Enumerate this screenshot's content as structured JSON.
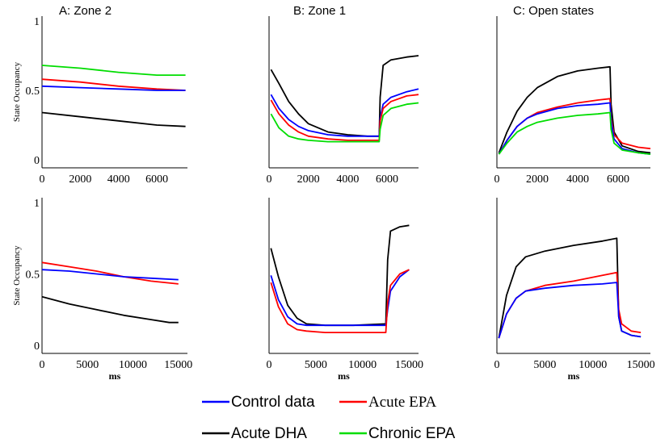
{
  "chart_data": {
    "type": "line",
    "ylabel": "State Occupancy",
    "xlabel": "ms",
    "legend": {
      "placement": "bottom",
      "entries": [
        {
          "name": "Control data",
          "color": "#0000ff"
        },
        {
          "name": "Acute EPA",
          "color": "#ff0000"
        },
        {
          "name": "Acute DHA",
          "color": "#000000"
        },
        {
          "name": "Chronic EPA",
          "color": "#00dd00"
        }
      ]
    },
    "panels": [
      {
        "id": "A-top",
        "title": "A: Zone 2",
        "xlim": [
          0,
          7600
        ],
        "ylim": [
          0,
          1
        ],
        "xticks": [
          "0",
          "2000",
          "4000",
          "6000"
        ],
        "yticks": [
          "0",
          "0.5",
          "1"
        ],
        "show_ylabel": true,
        "show_xlabel": false,
        "series": [
          {
            "name": "Chronic EPA",
            "x": [
              0,
              2000,
              4000,
              6000,
              7500
            ],
            "y": [
              0.68,
              0.66,
              0.63,
              0.61,
              0.61
            ]
          },
          {
            "name": "Acute EPA",
            "x": [
              0,
              2000,
              4000,
              6000,
              7500
            ],
            "y": [
              0.58,
              0.56,
              0.53,
              0.51,
              0.5
            ]
          },
          {
            "name": "Control data",
            "x": [
              0,
              2000,
              4000,
              6000,
              7500
            ],
            "y": [
              0.53,
              0.52,
              0.51,
              0.5,
              0.5
            ]
          },
          {
            "name": "Acute DHA",
            "x": [
              0,
              2000,
              4000,
              6000,
              7500
            ],
            "y": [
              0.34,
              0.31,
              0.28,
              0.25,
              0.24
            ]
          }
        ]
      },
      {
        "id": "B-top",
        "title": "B: Zone 1",
        "xlim": [
          0,
          7600
        ],
        "ylim": [
          0,
          1
        ],
        "xticks": [
          "0",
          "2000",
          "4000",
          "6000"
        ],
        "yticks": [],
        "show_ylabel": false,
        "show_xlabel": false,
        "series": [
          {
            "name": "Acute DHA",
            "x": [
              100,
              500,
              1000,
              1500,
              2000,
              3000,
              4000,
              5000,
              5600,
              5650,
              5800,
              6200,
              7000,
              7600
            ],
            "y": [
              0.65,
              0.55,
              0.42,
              0.33,
              0.26,
              0.2,
              0.18,
              0.17,
              0.17,
              0.45,
              0.68,
              0.72,
              0.74,
              0.75
            ]
          },
          {
            "name": "Control data",
            "x": [
              100,
              500,
              1000,
              1500,
              2000,
              3000,
              4000,
              5000,
              5600,
              5650,
              5800,
              6200,
              7000,
              7600
            ],
            "y": [
              0.47,
              0.37,
              0.29,
              0.24,
              0.21,
              0.18,
              0.17,
              0.17,
              0.17,
              0.3,
              0.4,
              0.45,
              0.49,
              0.51
            ]
          },
          {
            "name": "Acute EPA",
            "x": [
              100,
              500,
              1000,
              1500,
              2000,
              3000,
              4000,
              5000,
              5600,
              5650,
              5800,
              6200,
              7000,
              7600
            ],
            "y": [
              0.43,
              0.33,
              0.25,
              0.2,
              0.17,
              0.15,
              0.14,
              0.14,
              0.14,
              0.28,
              0.37,
              0.42,
              0.46,
              0.47
            ]
          },
          {
            "name": "Chronic EPA",
            "x": [
              100,
              500,
              1000,
              1500,
              2000,
              3000,
              4000,
              5000,
              5600,
              5650,
              5800,
              6200,
              7000,
              7600
            ],
            "y": [
              0.33,
              0.23,
              0.17,
              0.15,
              0.14,
              0.13,
              0.13,
              0.13,
              0.13,
              0.22,
              0.32,
              0.37,
              0.4,
              0.41
            ]
          }
        ]
      },
      {
        "id": "C-top",
        "title": "C: Open states",
        "xlim": [
          0,
          7600
        ],
        "ylim": [
          0,
          1
        ],
        "xticks": [
          "0",
          "2000",
          "4000",
          "6000"
        ],
        "yticks": [],
        "show_ylabel": false,
        "show_xlabel": false,
        "series": [
          {
            "name": "Acute DHA",
            "x": [
              100,
              500,
              1000,
              1500,
              2000,
              3000,
              4000,
              5000,
              5600,
              5650,
              5800,
              6200,
              7000,
              7600
            ],
            "y": [
              0.05,
              0.2,
              0.35,
              0.45,
              0.52,
              0.6,
              0.64,
              0.66,
              0.67,
              0.4,
              0.2,
              0.1,
              0.06,
              0.05
            ]
          },
          {
            "name": "Acute EPA",
            "x": [
              100,
              500,
              1000,
              1500,
              2000,
              3000,
              4000,
              5000,
              5600,
              5650,
              5800,
              6200,
              7000,
              7600
            ],
            "y": [
              0.04,
              0.14,
              0.24,
              0.3,
              0.34,
              0.38,
              0.41,
              0.43,
              0.44,
              0.3,
              0.18,
              0.12,
              0.09,
              0.08
            ]
          },
          {
            "name": "Control data",
            "x": [
              100,
              500,
              1000,
              1500,
              2000,
              3000,
              4000,
              5000,
              5600,
              5650,
              5800,
              6200,
              7000,
              7600
            ],
            "y": [
              0.04,
              0.14,
              0.24,
              0.3,
              0.33,
              0.37,
              0.39,
              0.4,
              0.41,
              0.28,
              0.15,
              0.08,
              0.05,
              0.04
            ]
          },
          {
            "name": "Chronic EPA",
            "x": [
              100,
              500,
              1000,
              1500,
              2000,
              3000,
              4000,
              5000,
              5600,
              5650,
              5800,
              6200,
              7000,
              7600
            ],
            "y": [
              0.04,
              0.12,
              0.2,
              0.24,
              0.27,
              0.3,
              0.32,
              0.33,
              0.34,
              0.22,
              0.12,
              0.07,
              0.05,
              0.04
            ]
          }
        ]
      },
      {
        "id": "A-bottom",
        "title": "",
        "xlim": [
          0,
          16000
        ],
        "ylim": [
          0,
          1
        ],
        "xticks": [
          "0",
          "5000",
          "10000",
          "15000"
        ],
        "yticks": [
          "0",
          "0.5",
          "1"
        ],
        "show_ylabel": true,
        "show_xlabel": true,
        "series": [
          {
            "name": "Acute EPA",
            "x": [
              0,
              3000,
              6000,
              9000,
              12000,
              15000
            ],
            "y": [
              0.58,
              0.55,
              0.52,
              0.48,
              0.45,
              0.43
            ]
          },
          {
            "name": "Control data",
            "x": [
              0,
              3000,
              6000,
              9000,
              12000,
              15000
            ],
            "y": [
              0.53,
              0.52,
              0.5,
              0.48,
              0.47,
              0.46
            ]
          },
          {
            "name": "Acute DHA",
            "x": [
              0,
              3000,
              6000,
              9000,
              12000,
              14000,
              15000
            ],
            "y": [
              0.34,
              0.29,
              0.25,
              0.21,
              0.18,
              0.16,
              0.16
            ]
          }
        ]
      },
      {
        "id": "B-bottom",
        "title": "",
        "xlim": [
          0,
          16000
        ],
        "ylim": [
          0,
          1
        ],
        "xticks": [
          "0",
          "5000",
          "10000",
          "15000"
        ],
        "yticks": [],
        "show_ylabel": false,
        "show_xlabel": true,
        "series": [
          {
            "name": "Acute DHA",
            "x": [
              200,
              1000,
              2000,
              3000,
              4000,
              6000,
              9000,
              12500,
              12700,
              13000,
              14000,
              15000
            ],
            "y": [
              0.68,
              0.48,
              0.28,
              0.19,
              0.15,
              0.14,
              0.14,
              0.15,
              0.6,
              0.8,
              0.83,
              0.84
            ]
          },
          {
            "name": "Control data",
            "x": [
              200,
              1000,
              2000,
              3000,
              4000,
              6000,
              9000,
              12500,
              12700,
              13000,
              14000,
              15000
            ],
            "y": [
              0.49,
              0.32,
              0.2,
              0.15,
              0.14,
              0.14,
              0.14,
              0.14,
              0.25,
              0.38,
              0.48,
              0.53
            ]
          },
          {
            "name": "Acute EPA",
            "x": [
              200,
              1000,
              2000,
              3000,
              4000,
              6000,
              9000,
              12500,
              12700,
              13000,
              14000,
              15000
            ],
            "y": [
              0.44,
              0.27,
              0.15,
              0.11,
              0.1,
              0.09,
              0.09,
              0.09,
              0.3,
              0.42,
              0.5,
              0.53
            ]
          }
        ]
      },
      {
        "id": "C-bottom",
        "title": "",
        "xlim": [
          0,
          16000
        ],
        "ylim": [
          0,
          1
        ],
        "xticks": [
          "0",
          "5000",
          "10000",
          "15000"
        ],
        "yticks": [],
        "show_ylabel": false,
        "show_xlabel": true,
        "series": [
          {
            "name": "Acute DHA",
            "x": [
              200,
              1000,
              2000,
              3000,
              5000,
              8000,
              11000,
              12500,
              12700,
              13000,
              14000,
              15000
            ],
            "y": [
              0.05,
              0.35,
              0.55,
              0.62,
              0.66,
              0.7,
              0.73,
              0.75,
              0.2,
              0.1,
              0.07,
              0.06
            ]
          },
          {
            "name": "Acute EPA",
            "x": [
              200,
              1000,
              2000,
              3000,
              5000,
              8000,
              11000,
              12500,
              12700,
              13000,
              14000,
              15000
            ],
            "y": [
              0.05,
              0.22,
              0.33,
              0.38,
              0.42,
              0.45,
              0.49,
              0.51,
              0.25,
              0.15,
              0.1,
              0.09
            ]
          },
          {
            "name": "Control data",
            "x": [
              200,
              1000,
              2000,
              3000,
              5000,
              8000,
              11000,
              12500,
              12700,
              13000,
              14000,
              15000
            ],
            "y": [
              0.05,
              0.22,
              0.33,
              0.38,
              0.4,
              0.42,
              0.43,
              0.44,
              0.2,
              0.1,
              0.07,
              0.06
            ]
          }
        ]
      }
    ]
  }
}
